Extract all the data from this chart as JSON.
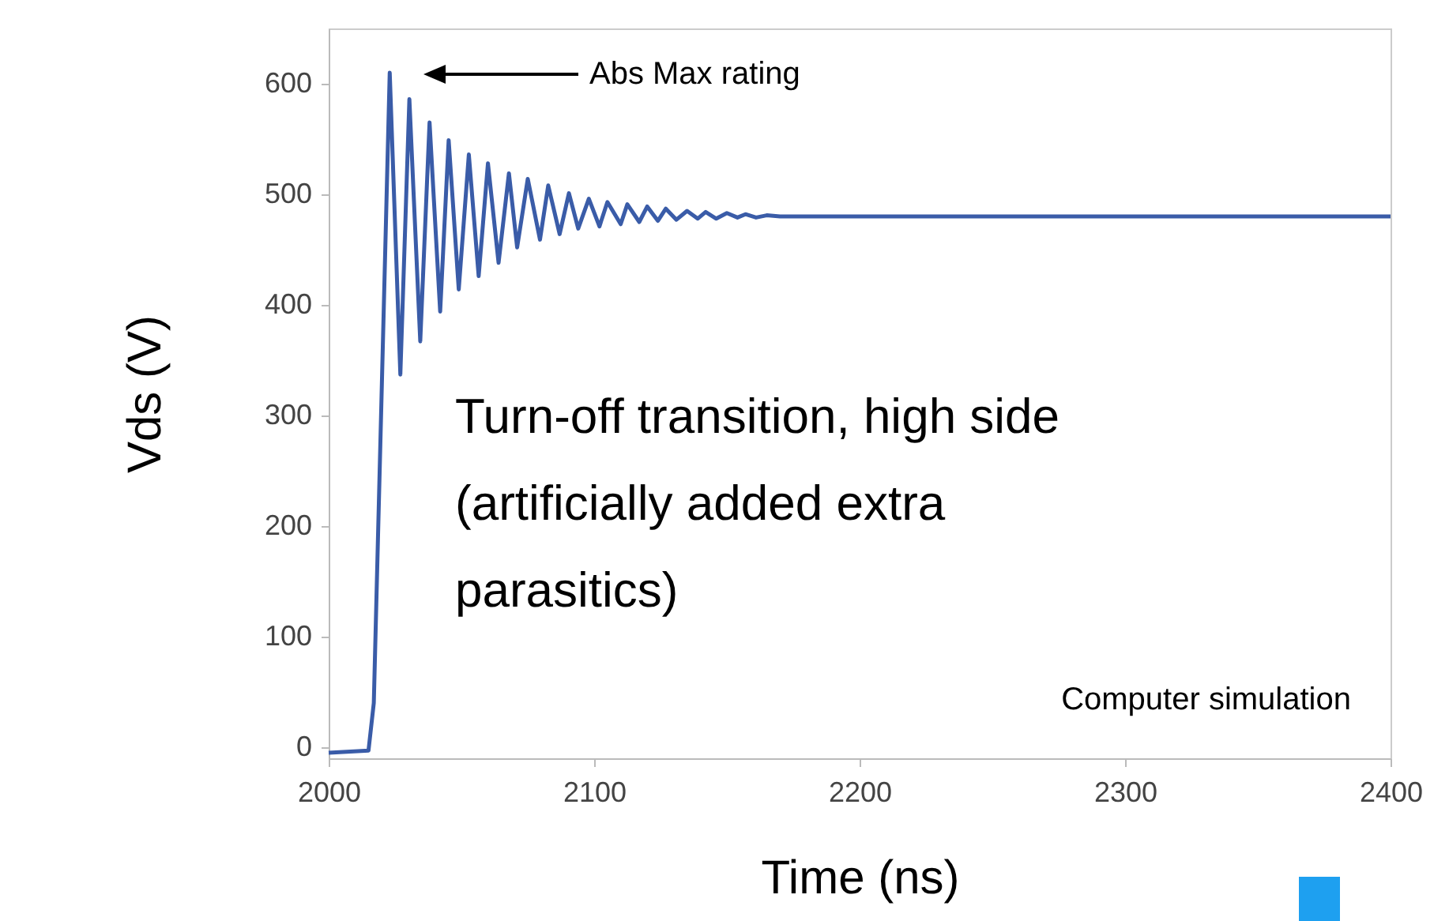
{
  "chart_data": {
    "type": "line",
    "xlabel": "Time (ns)",
    "ylabel": "Vds (V)",
    "x": [
      2000,
      2015,
      2017,
      2023,
      2027,
      2030.4,
      2034.5,
      2038,
      2042,
      2045.2,
      2049,
      2052.8,
      2056.5,
      2060,
      2064,
      2067.9,
      2071,
      2075,
      2079.6,
      2082.7,
      2087,
      2090.5,
      2094,
      2098,
      2102,
      2105,
      2110,
      2112.5,
      2117,
      2120,
      2124,
      2127,
      2131,
      2135,
      2139,
      2142,
      2146,
      2150,
      2154,
      2157,
      2161,
      2165,
      2170,
      2400
    ],
    "series": [
      {
        "color": "#3a5ca8",
        "values": [
          -5,
          -3,
          40,
          610,
          337,
          586,
          367,
          565,
          394,
          549,
          414,
          536,
          426,
          528,
          438,
          519,
          452,
          514,
          459,
          508,
          464,
          501,
          469,
          496,
          471,
          493,
          473,
          491,
          475,
          489,
          476,
          487,
          477,
          485,
          478,
          484,
          478,
          483,
          479,
          482,
          479,
          481,
          480,
          480
        ]
      }
    ],
    "xlim": [
      2000,
      2400
    ],
    "xticks": [
      2000,
      2100,
      2200,
      2300,
      2400
    ],
    "ylim": [
      -10,
      650
    ],
    "yticks": [
      0,
      100,
      200,
      300,
      400,
      500,
      600
    ],
    "grid": false,
    "marker": "none",
    "line_style": "solid",
    "annotations": [
      "Abs Max rating",
      "Turn-off transition, high side (artificially added extra parasitics)",
      "Computer simulation"
    ]
  }
}
